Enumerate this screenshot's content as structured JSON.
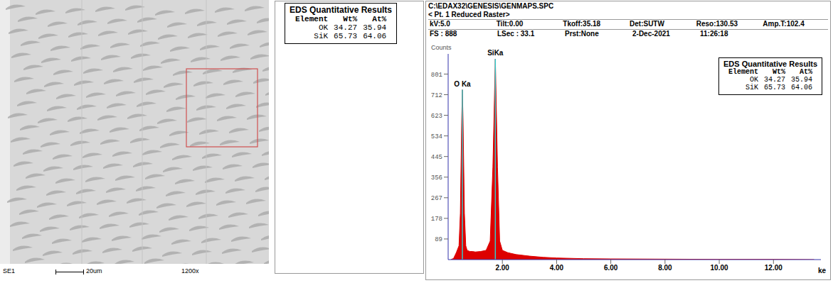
{
  "sem_image": {
    "detector": "SE1",
    "scale_bar": "20um",
    "magnification": "1200x"
  },
  "eds_table": {
    "title": "EDS Quantitative Results",
    "columns": [
      "Element",
      "Wt%",
      "At%"
    ],
    "rows": [
      [
        "OK",
        34.27,
        35.94
      ],
      [
        "SiK",
        65.73,
        64.06
      ]
    ]
  },
  "spectrum_header": {
    "file": "C:\\EDAX32\\GENESIS\\GENMAPS.SPC",
    "label": "< Pt. 1 Reduced Raster>",
    "fields": [
      [
        "kV:5.0",
        "Tilt:0.00",
        "Tkoff:35.18",
        "Det:SUTW",
        "Reso:130.53",
        "Amp.T:102.4"
      ],
      [
        "FS : 888",
        "LSec : 33.1",
        "Prst:None",
        "2-Dec-2021",
        "11:26:18"
      ]
    ]
  },
  "chart_data": {
    "type": "area",
    "y_label": "Counts",
    "x_label": "ke",
    "color": "#dd0000",
    "x": [
      0.1,
      0.2,
      0.3,
      0.4,
      0.45,
      0.5,
      0.525,
      0.55,
      0.6,
      0.65,
      0.7,
      0.8,
      0.9,
      1.0,
      1.2,
      1.4,
      1.55,
      1.65,
      1.74,
      1.82,
      1.9,
      2.0,
      2.2,
      2.5,
      3.0,
      3.5,
      4.0,
      5.0,
      6.0,
      8.0,
      10.0,
      12.0,
      13.5
    ],
    "values": [
      0,
      5,
      30,
      60,
      200,
      600,
      733,
      600,
      200,
      60,
      40,
      35,
      35,
      33,
      35,
      40,
      80,
      400,
      866,
      400,
      80,
      40,
      30,
      22,
      15,
      10,
      7,
      4,
      3,
      2,
      1,
      1,
      0
    ],
    "xlim": [
      0,
      13.75
    ],
    "xticks": [
      {
        "value": 2,
        "label": "2.00"
      },
      {
        "value": 4,
        "label": "4.00"
      },
      {
        "value": 6,
        "label": "6.00"
      },
      {
        "value": 8,
        "label": "8.00"
      },
      {
        "value": 10,
        "label": "10.00"
      },
      {
        "value": 12,
        "label": "12.00"
      }
    ],
    "ylim": [
      0,
      888
    ],
    "yticks": [
      89,
      178,
      267,
      356,
      445,
      534,
      623,
      712,
      801
    ],
    "annotations": [
      {
        "text": "O Ka",
        "x": 0.525,
        "y": 733
      },
      {
        "text": "SiKa",
        "x": 1.74,
        "y": 866
      }
    ]
  }
}
